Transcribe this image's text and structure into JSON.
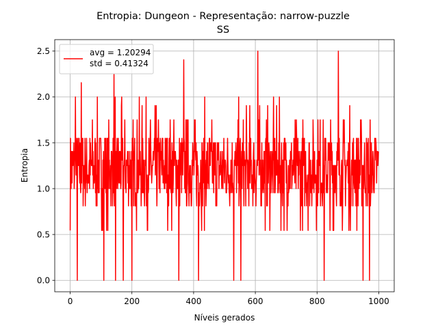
{
  "chart_data": {
    "type": "line",
    "title_line1": "Entropia: Dungeon - Representação: narrow-puzzle",
    "title_line2": "SS",
    "xlabel": "Níveis gerados",
    "ylabel": "Entropia",
    "xlim": [
      -50,
      1050
    ],
    "ylim": [
      -0.125,
      2.625
    ],
    "xticks": [
      0,
      200,
      400,
      600,
      800,
      1000
    ],
    "xtick_labels": [
      "0",
      "200",
      "400",
      "600",
      "800",
      "1000"
    ],
    "yticks": [
      0.0,
      0.5,
      1.0,
      1.5,
      2.0,
      2.5
    ],
    "ytick_labels": [
      "0.0",
      "0.5",
      "1.0",
      "1.5",
      "2.0",
      "2.5"
    ],
    "grid": true,
    "legend_position": "top-left",
    "legend_lines": [
      "avg = 1.20294",
      "std = 0.41324"
    ],
    "series": [
      {
        "color": "#ff0000",
        "n_points": 1000,
        "avg": 1.20294,
        "std": 0.41324,
        "value_levels": [
          0.0,
          0.5436,
          0.8113,
          0.9544,
          1.0,
          1.0613,
          1.1488,
          1.2516,
          1.3113,
          1.4056,
          1.5,
          1.5488,
          1.75,
          1.9056,
          2.0,
          2.1556,
          2.25,
          2.4056,
          2.5
        ],
        "peaks": [
          {
            "x": 17,
            "y": 2.0
          },
          {
            "x": 23,
            "y": 0.0
          },
          {
            "x": 36,
            "y": 2.1556
          },
          {
            "x": 109,
            "y": 0.0
          },
          {
            "x": 142,
            "y": 2.25
          },
          {
            "x": 147,
            "y": 0.0
          },
          {
            "x": 172,
            "y": 0.0
          },
          {
            "x": 200,
            "y": 0.0
          },
          {
            "x": 352,
            "y": 0.0
          },
          {
            "x": 368,
            "y": 2.4056
          },
          {
            "x": 416,
            "y": 0.0
          },
          {
            "x": 530,
            "y": 0.0
          },
          {
            "x": 553,
            "y": 0.0
          },
          {
            "x": 608,
            "y": 2.5
          },
          {
            "x": 823,
            "y": 0.0
          },
          {
            "x": 869,
            "y": 2.5
          },
          {
            "x": 949,
            "y": 0.0
          },
          {
            "x": 970,
            "y": 0.0
          }
        ]
      }
    ]
  }
}
